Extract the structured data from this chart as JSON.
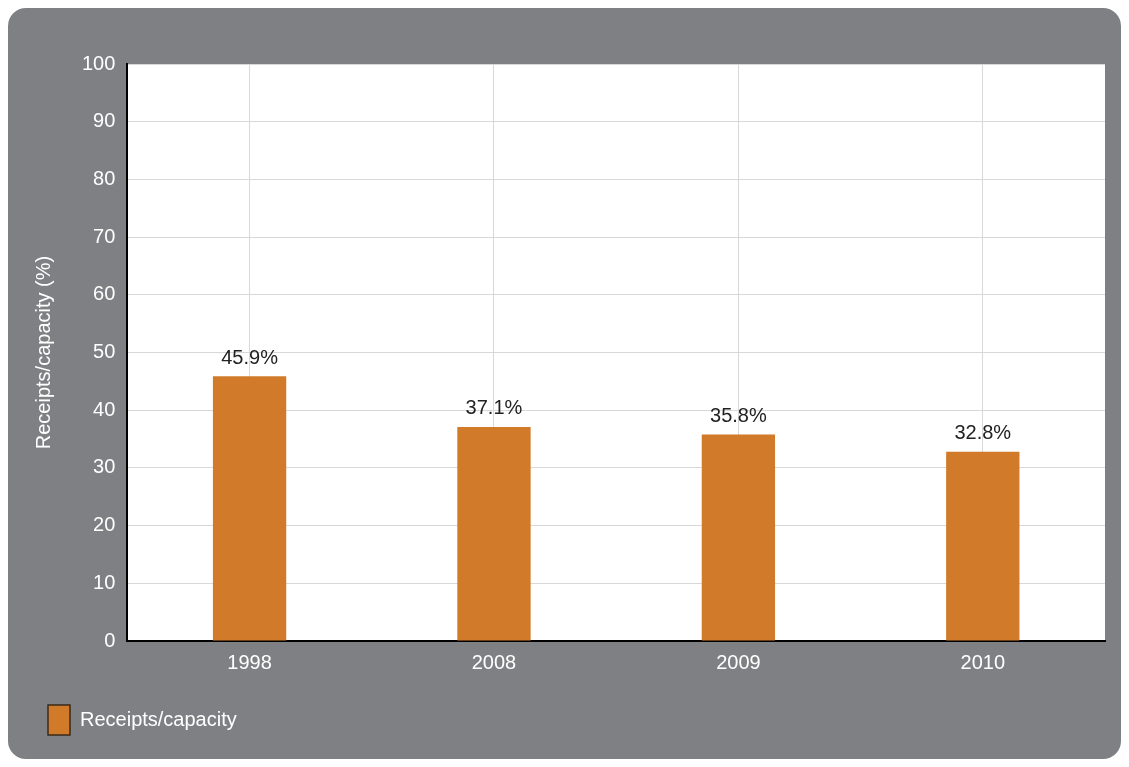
{
  "chart_data": {
    "type": "bar",
    "ylabel": "Receipts/capacity (%)",
    "categories": [
      "1998",
      "2008",
      "2009",
      "2010"
    ],
    "series": [
      {
        "name": "Receipts/capacity",
        "color": "#d07a2a",
        "values": [
          45.9,
          37.1,
          35.8,
          32.8
        ],
        "value_labels": [
          "45.9%",
          "37.1%",
          "35.8%",
          "32.8%"
        ]
      }
    ],
    "ylim": [
      0,
      100
    ],
    "yticks": [
      0,
      10,
      20,
      30,
      40,
      50,
      60,
      70,
      80,
      90,
      100
    ],
    "grid": true,
    "legend": "bottom left"
  }
}
